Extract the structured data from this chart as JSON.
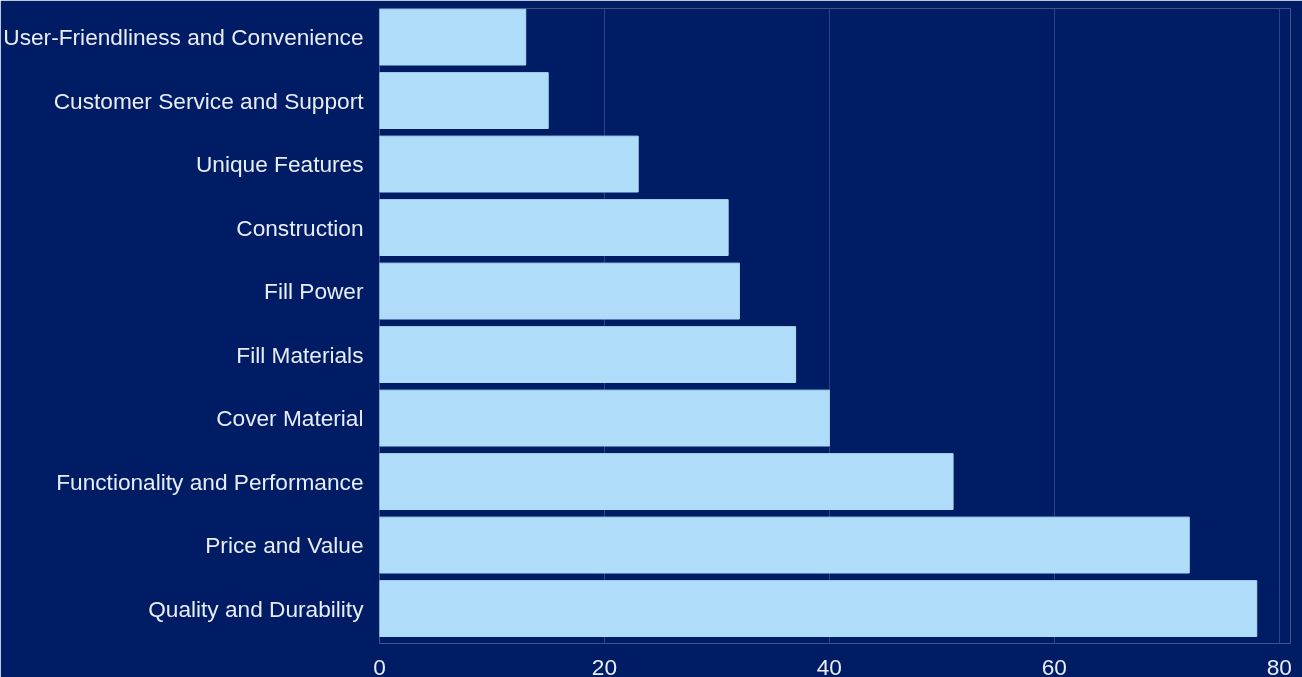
{
  "chart_data": {
    "type": "bar",
    "orientation": "horizontal",
    "categories": [
      "User-Friendliness and Convenience",
      "Customer Service and Support",
      "Unique Features",
      "Construction",
      "Fill Power",
      "Fill Materials",
      "Cover Material",
      "Functionality and Performance",
      "Price and Value",
      "Quality and Durability"
    ],
    "values": [
      13,
      15,
      23,
      31,
      32,
      37,
      40,
      51,
      72,
      78
    ],
    "color": "#afdcf8",
    "xlim": [
      0,
      81
    ],
    "xticks": [
      0,
      20,
      40,
      60,
      80
    ],
    "grid": "x"
  }
}
